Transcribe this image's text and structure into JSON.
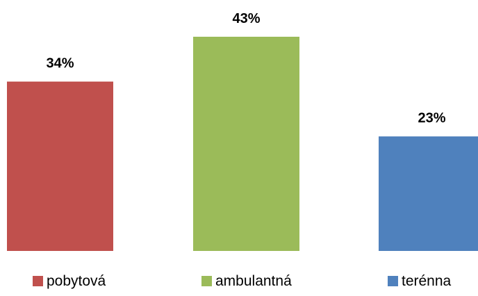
{
  "chart_data": {
    "type": "bar",
    "categories": [
      "pobytová",
      "ambulantná",
      "terénna"
    ],
    "values": [
      34,
      43,
      23
    ],
    "value_labels": [
      "34%",
      "43%",
      "23%"
    ],
    "colors": [
      "#c0504d",
      "#9bbb59",
      "#4f81bd"
    ],
    "ylim": [
      0,
      43
    ],
    "grid": false,
    "legend": "bottom",
    "title": "",
    "xlabel": "",
    "ylabel": ""
  }
}
